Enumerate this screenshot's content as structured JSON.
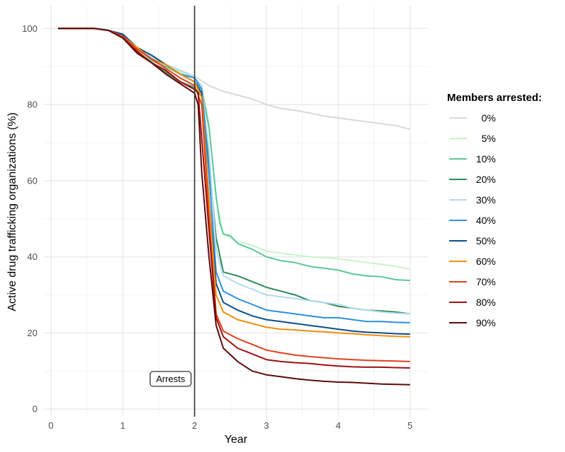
{
  "chart_data": {
    "type": "line",
    "xlabel": "Year",
    "ylabel": "Active drug trafficking organizations (%)",
    "xlim": [
      -0.1,
      5.25
    ],
    "ylim": [
      -2,
      106
    ],
    "xticks": [
      0,
      1,
      2,
      3,
      4,
      5
    ],
    "yticks": [
      0,
      20,
      40,
      60,
      80,
      100
    ],
    "grid": true,
    "legend": {
      "title": "Members arrested:",
      "placement": "right"
    },
    "vline": {
      "x": 2,
      "label": "Arrests",
      "color": "#333333"
    },
    "series": [
      {
        "name": "0%",
        "color": "#d9d9d9",
        "points": [
          [
            0.1,
            100
          ],
          [
            0.6,
            100
          ],
          [
            0.8,
            99.5
          ],
          [
            1.0,
            98
          ],
          [
            1.2,
            95
          ],
          [
            1.4,
            92
          ],
          [
            1.6,
            90.5
          ],
          [
            1.8,
            89
          ],
          [
            2.0,
            87.5
          ],
          [
            2.2,
            85
          ],
          [
            2.4,
            83.5
          ],
          [
            2.6,
            82.5
          ],
          [
            2.8,
            81.5
          ],
          [
            3.0,
            80
          ],
          [
            3.2,
            79
          ],
          [
            3.4,
            78.5
          ],
          [
            3.6,
            77.8
          ],
          [
            3.8,
            77
          ],
          [
            4.0,
            76.5
          ],
          [
            4.2,
            76
          ],
          [
            4.4,
            75.5
          ],
          [
            4.6,
            75
          ],
          [
            4.8,
            74.5
          ],
          [
            5.0,
            73.5
          ]
        ]
      },
      {
        "name": "5%",
        "color": "#c7f5c9",
        "points": [
          [
            0.1,
            100
          ],
          [
            0.6,
            100
          ],
          [
            0.8,
            99.5
          ],
          [
            1.0,
            98
          ],
          [
            1.2,
            95
          ],
          [
            1.4,
            92
          ],
          [
            1.6,
            90.5
          ],
          [
            1.8,
            88.5
          ],
          [
            2.0,
            87
          ],
          [
            2.1,
            85
          ],
          [
            2.2,
            75
          ],
          [
            2.3,
            55
          ],
          [
            2.4,
            46
          ],
          [
            2.5,
            45
          ],
          [
            2.6,
            44
          ],
          [
            2.8,
            43
          ],
          [
            3.0,
            41.5
          ],
          [
            3.2,
            41
          ],
          [
            3.4,
            40.5
          ],
          [
            3.6,
            40
          ],
          [
            3.8,
            39.8
          ],
          [
            4.0,
            39.5
          ],
          [
            4.2,
            39
          ],
          [
            4.4,
            38.5
          ],
          [
            4.6,
            38
          ],
          [
            4.8,
            37.5
          ],
          [
            5.0,
            36.8
          ]
        ]
      },
      {
        "name": "10%",
        "color": "#5cc79a",
        "points": [
          [
            0.1,
            100
          ],
          [
            0.6,
            100
          ],
          [
            0.8,
            99.5
          ],
          [
            1.0,
            98
          ],
          [
            1.2,
            95
          ],
          [
            1.4,
            91.5
          ],
          [
            1.6,
            90
          ],
          [
            1.8,
            88
          ],
          [
            2.0,
            86
          ],
          [
            2.1,
            84
          ],
          [
            2.2,
            74
          ],
          [
            2.3,
            56
          ],
          [
            2.35,
            49
          ],
          [
            2.4,
            46
          ],
          [
            2.5,
            45.5
          ],
          [
            2.6,
            43.5
          ],
          [
            2.8,
            42
          ],
          [
            3.0,
            40
          ],
          [
            3.2,
            39
          ],
          [
            3.4,
            38.5
          ],
          [
            3.6,
            37.5
          ],
          [
            3.8,
            37
          ],
          [
            4.0,
            36.5
          ],
          [
            4.2,
            35.5
          ],
          [
            4.4,
            35
          ],
          [
            4.6,
            34.8
          ],
          [
            4.8,
            34
          ],
          [
            5.0,
            33.8
          ]
        ]
      },
      {
        "name": "20%",
        "color": "#2e8b57",
        "points": [
          [
            0.1,
            100
          ],
          [
            0.6,
            100
          ],
          [
            0.8,
            99.5
          ],
          [
            1.0,
            97.5
          ],
          [
            1.2,
            94
          ],
          [
            1.4,
            91
          ],
          [
            1.6,
            88.5
          ],
          [
            1.8,
            86
          ],
          [
            2.0,
            84.5
          ],
          [
            2.1,
            82
          ],
          [
            2.2,
            65
          ],
          [
            2.3,
            45
          ],
          [
            2.4,
            36
          ],
          [
            2.6,
            35
          ],
          [
            2.8,
            33.5
          ],
          [
            3.0,
            32
          ],
          [
            3.2,
            31
          ],
          [
            3.4,
            30
          ],
          [
            3.6,
            28.5
          ],
          [
            3.8,
            28
          ],
          [
            4.0,
            27
          ],
          [
            4.2,
            26.5
          ],
          [
            4.4,
            26
          ],
          [
            4.6,
            25.8
          ],
          [
            4.8,
            25.5
          ],
          [
            5.0,
            25
          ]
        ]
      },
      {
        "name": "30%",
        "color": "#b3daef",
        "points": [
          [
            0.1,
            100
          ],
          [
            0.6,
            100
          ],
          [
            0.8,
            99.5
          ],
          [
            1.0,
            98.5
          ],
          [
            1.2,
            95
          ],
          [
            1.4,
            92.5
          ],
          [
            1.6,
            90.5
          ],
          [
            1.8,
            89
          ],
          [
            2.0,
            87
          ],
          [
            2.1,
            85
          ],
          [
            2.2,
            68
          ],
          [
            2.3,
            42
          ],
          [
            2.4,
            35
          ],
          [
            2.6,
            33
          ],
          [
            2.8,
            31.5
          ],
          [
            3.0,
            30
          ],
          [
            3.2,
            29.5
          ],
          [
            3.4,
            29
          ],
          [
            3.6,
            28.5
          ],
          [
            3.8,
            28
          ],
          [
            4.0,
            27.5
          ],
          [
            4.2,
            26.5
          ],
          [
            4.4,
            26
          ],
          [
            4.6,
            25.5
          ],
          [
            4.8,
            25.2
          ],
          [
            5.0,
            25
          ]
        ]
      },
      {
        "name": "40%",
        "color": "#2c8fe0",
        "points": [
          [
            0.1,
            100
          ],
          [
            0.6,
            100
          ],
          [
            0.8,
            99.5
          ],
          [
            1.0,
            98
          ],
          [
            1.2,
            95
          ],
          [
            1.4,
            92
          ],
          [
            1.6,
            90.5
          ],
          [
            1.8,
            88
          ],
          [
            2.0,
            87
          ],
          [
            2.1,
            84
          ],
          [
            2.2,
            62
          ],
          [
            2.3,
            36
          ],
          [
            2.4,
            31
          ],
          [
            2.6,
            29
          ],
          [
            2.8,
            27.5
          ],
          [
            3.0,
            26
          ],
          [
            3.2,
            25.5
          ],
          [
            3.4,
            25
          ],
          [
            3.6,
            24.5
          ],
          [
            3.8,
            24
          ],
          [
            4.0,
            24
          ],
          [
            4.2,
            23.5
          ],
          [
            4.4,
            23
          ],
          [
            4.6,
            23
          ],
          [
            4.8,
            22.8
          ],
          [
            5.0,
            22.7
          ]
        ]
      },
      {
        "name": "50%",
        "color": "#0b4f8c",
        "points": [
          [
            0.1,
            100
          ],
          [
            0.6,
            100
          ],
          [
            0.8,
            99.5
          ],
          [
            1.0,
            98.5
          ],
          [
            1.2,
            95
          ],
          [
            1.4,
            93
          ],
          [
            1.6,
            90.5
          ],
          [
            1.8,
            88
          ],
          [
            2.0,
            86
          ],
          [
            2.1,
            83
          ],
          [
            2.2,
            55
          ],
          [
            2.3,
            33
          ],
          [
            2.4,
            28
          ],
          [
            2.6,
            26
          ],
          [
            2.8,
            24.5
          ],
          [
            3.0,
            23.5
          ],
          [
            3.2,
            23
          ],
          [
            3.4,
            22.5
          ],
          [
            3.6,
            22
          ],
          [
            3.8,
            21.5
          ],
          [
            4.0,
            21
          ],
          [
            4.2,
            20.5
          ],
          [
            4.4,
            20.2
          ],
          [
            4.6,
            20
          ],
          [
            4.8,
            19.8
          ],
          [
            5.0,
            19.7
          ]
        ]
      },
      {
        "name": "60%",
        "color": "#f0900a",
        "points": [
          [
            0.1,
            100
          ],
          [
            0.6,
            100
          ],
          [
            0.8,
            99.5
          ],
          [
            1.0,
            98
          ],
          [
            1.2,
            95
          ],
          [
            1.4,
            92
          ],
          [
            1.6,
            90.5
          ],
          [
            1.8,
            88
          ],
          [
            2.0,
            86
          ],
          [
            2.1,
            82
          ],
          [
            2.2,
            55
          ],
          [
            2.3,
            30
          ],
          [
            2.4,
            25.5
          ],
          [
            2.6,
            23.5
          ],
          [
            2.8,
            22.5
          ],
          [
            3.0,
            21.5
          ],
          [
            3.2,
            21
          ],
          [
            3.4,
            20.8
          ],
          [
            3.6,
            20.5
          ],
          [
            3.8,
            20.3
          ],
          [
            4.0,
            20
          ],
          [
            4.2,
            19.8
          ],
          [
            4.4,
            19.5
          ],
          [
            4.6,
            19.3
          ],
          [
            4.8,
            19.1
          ],
          [
            5.0,
            19
          ]
        ]
      },
      {
        "name": "70%",
        "color": "#e0401a",
        "points": [
          [
            0.1,
            100
          ],
          [
            0.6,
            100
          ],
          [
            0.8,
            99.5
          ],
          [
            1.0,
            98
          ],
          [
            1.2,
            94.5
          ],
          [
            1.4,
            92
          ],
          [
            1.6,
            89.5
          ],
          [
            1.8,
            87
          ],
          [
            2.0,
            85
          ],
          [
            2.1,
            80
          ],
          [
            2.2,
            50
          ],
          [
            2.3,
            25
          ],
          [
            2.4,
            20.5
          ],
          [
            2.6,
            18.5
          ],
          [
            2.8,
            17
          ],
          [
            3.0,
            15.5
          ],
          [
            3.2,
            14.8
          ],
          [
            3.4,
            14.2
          ],
          [
            3.6,
            13.8
          ],
          [
            3.8,
            13.5
          ],
          [
            4.0,
            13.2
          ],
          [
            4.2,
            13
          ],
          [
            4.4,
            12.8
          ],
          [
            4.6,
            12.7
          ],
          [
            4.8,
            12.6
          ],
          [
            5.0,
            12.5
          ]
        ]
      },
      {
        "name": "80%",
        "color": "#9e1010",
        "points": [
          [
            0.1,
            100
          ],
          [
            0.6,
            100
          ],
          [
            0.8,
            99.5
          ],
          [
            1.0,
            97.5
          ],
          [
            1.2,
            94
          ],
          [
            1.4,
            91
          ],
          [
            1.6,
            89
          ],
          [
            1.8,
            86
          ],
          [
            2.0,
            84
          ],
          [
            2.05,
            83
          ],
          [
            2.2,
            47
          ],
          [
            2.3,
            24
          ],
          [
            2.4,
            19
          ],
          [
            2.6,
            16
          ],
          [
            2.8,
            14.5
          ],
          [
            3.0,
            13
          ],
          [
            3.2,
            12.5
          ],
          [
            3.4,
            12.2
          ],
          [
            3.6,
            12
          ],
          [
            3.8,
            11.6
          ],
          [
            4.0,
            11.3
          ],
          [
            4.2,
            11.1
          ],
          [
            4.4,
            11
          ],
          [
            4.6,
            11
          ],
          [
            4.8,
            10.9
          ],
          [
            5.0,
            10.8
          ]
        ]
      },
      {
        "name": "90%",
        "color": "#5c0a0a",
        "points": [
          [
            0.1,
            100
          ],
          [
            0.6,
            100
          ],
          [
            0.8,
            99.5
          ],
          [
            1.0,
            97.5
          ],
          [
            1.2,
            93.5
          ],
          [
            1.4,
            91
          ],
          [
            1.6,
            88
          ],
          [
            1.8,
            85.5
          ],
          [
            2.0,
            83
          ],
          [
            2.05,
            80
          ],
          [
            2.1,
            62
          ],
          [
            2.2,
            40
          ],
          [
            2.3,
            22
          ],
          [
            2.4,
            16
          ],
          [
            2.6,
            12.5
          ],
          [
            2.8,
            10
          ],
          [
            3.0,
            9
          ],
          [
            3.2,
            8.5
          ],
          [
            3.4,
            8
          ],
          [
            3.6,
            7.6
          ],
          [
            3.8,
            7.3
          ],
          [
            4.0,
            7.1
          ],
          [
            4.2,
            7
          ],
          [
            4.4,
            6.8
          ],
          [
            4.6,
            6.6
          ],
          [
            4.8,
            6.5
          ],
          [
            5.0,
            6.4
          ]
        ]
      }
    ]
  }
}
